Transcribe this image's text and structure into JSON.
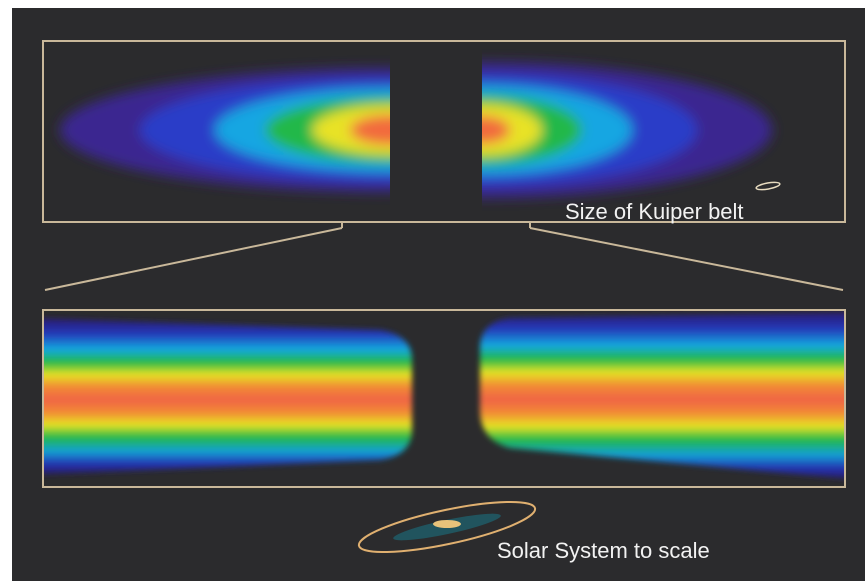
{
  "labels": {
    "kuiper": "Size of Kuiper belt",
    "solar": "Solar System to scale"
  }
}
